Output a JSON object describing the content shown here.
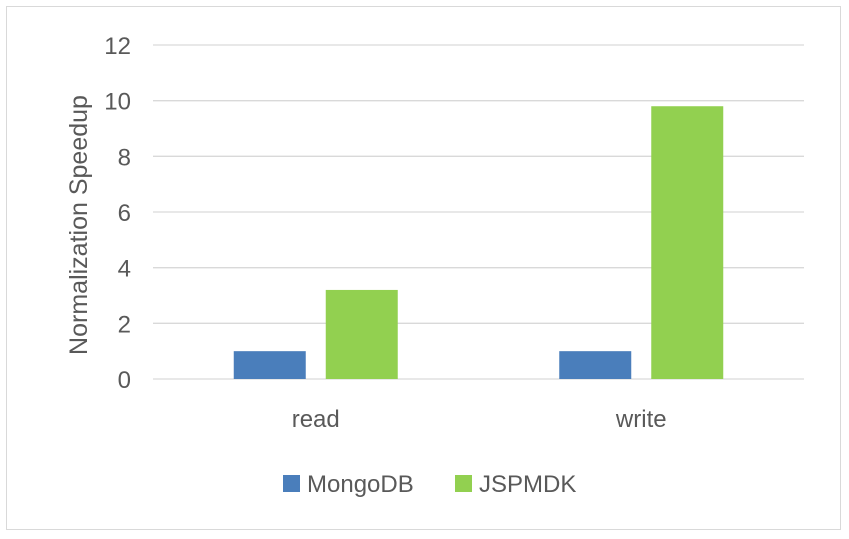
{
  "chart_data": {
    "type": "bar",
    "categories": [
      "read",
      "write"
    ],
    "series": [
      {
        "name": "MongoDB",
        "values": [
          1,
          1
        ],
        "color": "#4a7ebb"
      },
      {
        "name": "JSPMDK",
        "values": [
          3.2,
          9.8
        ],
        "color": "#92d050"
      }
    ],
    "ylabel": "Normalization Speedup",
    "ylim": [
      0,
      12
    ],
    "yticks": [
      0,
      2,
      4,
      6,
      8,
      10,
      12
    ],
    "grid": true,
    "legend": "bottom"
  }
}
